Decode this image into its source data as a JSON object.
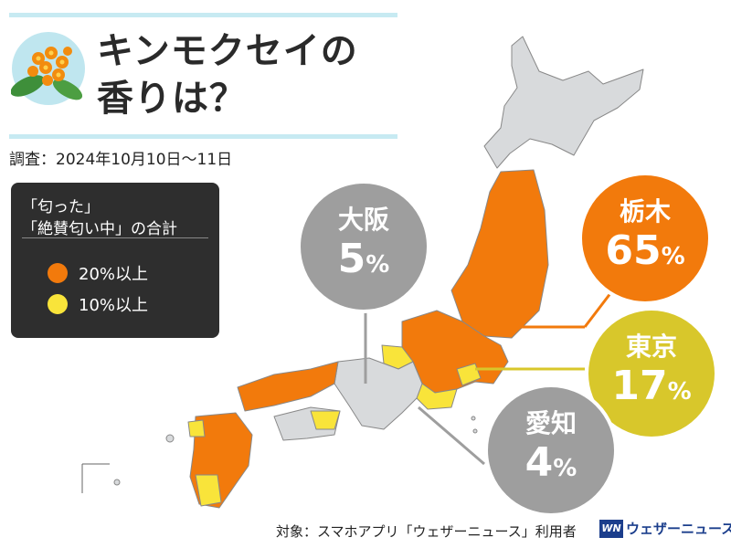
{
  "title": {
    "line1": "キンモクセイの",
    "line2": "香りは？"
  },
  "survey_date": "調査：2024年10月10日〜11日",
  "legend": {
    "heading_line1": "「匂った」",
    "heading_line2": "「絶賛匂い中」の合計",
    "items": [
      {
        "label": "20%以上",
        "color": "#f27a0c"
      },
      {
        "label": "10%以上",
        "color": "#f9e43a"
      }
    ]
  },
  "callouts": [
    {
      "name": "栃木",
      "value": "65",
      "unit": "%",
      "color": "#f27a0c"
    },
    {
      "name": "東京",
      "value": "17",
      "unit": "%",
      "color": "#d8c72b"
    },
    {
      "name": "大阪",
      "value": "5",
      "unit": "%",
      "color": "#9e9e9e"
    },
    {
      "name": "愛知",
      "value": "4",
      "unit": "%",
      "color": "#9e9e9e"
    }
  ],
  "footer": "対象：スマホアプリ「ウェザーニュース」利用者",
  "brand": {
    "logo": "WN",
    "name": "ウェザーニュース"
  },
  "colors": {
    "grey": "#d8dadc",
    "orange": "#f27a0c",
    "yellow": "#f9e43a",
    "accent_line": "#c7eaf2"
  },
  "icons": {
    "flower": "osmanthus-flower-icon"
  }
}
